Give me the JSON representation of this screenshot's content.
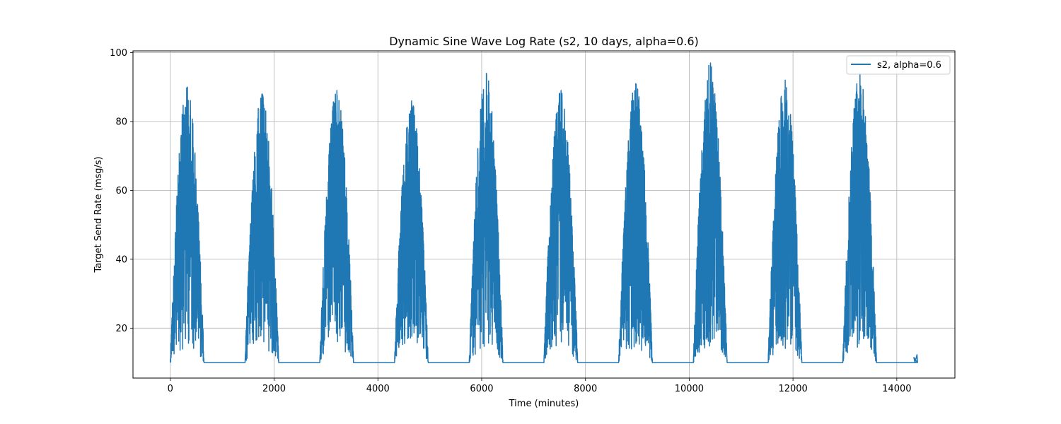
{
  "chart_data": {
    "type": "line",
    "title": "Dynamic Sine Wave Log Rate (s2, 10 days, alpha=0.6)",
    "xlabel": "Time (minutes)",
    "ylabel": "Target Send Rate (msg/s)",
    "xlim": [
      -720,
      15120
    ],
    "ylim": [
      5.5,
      100.5
    ],
    "xticks": [
      0,
      2000,
      4000,
      6000,
      8000,
      10000,
      12000,
      14000
    ],
    "xtick_labels": [
      "0",
      "2000",
      "4000",
      "6000",
      "8000",
      "10000",
      "12000",
      "14000"
    ],
    "yticks": [
      20,
      40,
      60,
      80,
      100
    ],
    "ytick_labels": [
      "20",
      "40",
      "60",
      "80",
      "100"
    ],
    "grid": true,
    "legend_position": "top-right",
    "period_minutes": 1440,
    "days": 10,
    "baseline": 10,
    "series": [
      {
        "name": "s2, alpha=0.6",
        "color": "#1f77b4",
        "day_peaks": [
          90,
          88,
          89,
          86,
          94,
          89,
          91,
          97,
          92,
          94
        ],
        "active_window_minutes_per_day": [
          0,
          650
        ],
        "peak_minute_in_day": 330,
        "tail": {
          "x": [
            14330,
            14350,
            14390,
            14400
          ],
          "y": [
            11.5,
            10,
            12.3,
            10
          ]
        }
      }
    ]
  }
}
